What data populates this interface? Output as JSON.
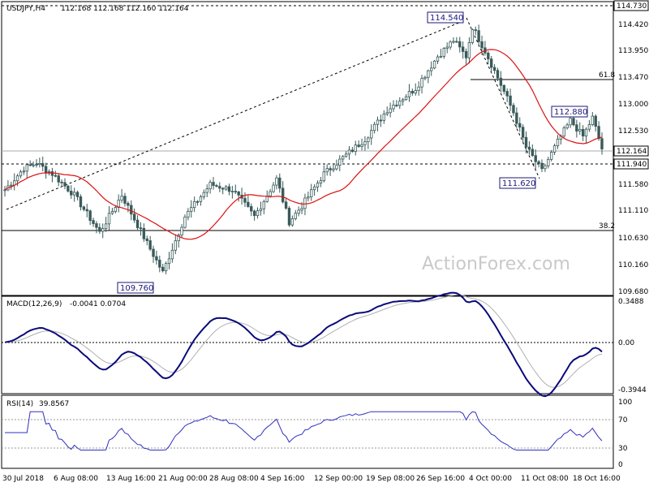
{
  "header": {
    "symbol": "USDJPY,H4",
    "ohlc": "112.168 112.168 112.160 112.164"
  },
  "watermark": "ActionForex.com",
  "colors": {
    "candles": "#3a5a5a",
    "ma": "#dd1111",
    "macd": "#0a0a7a",
    "signal": "#b0b0b0",
    "rsi": "#3030c0",
    "box": "#1a1a7a"
  },
  "price_axis": [
    "114.420",
    "113.950",
    "113.470",
    "113.000",
    "112.530",
    "111.580",
    "111.110",
    "110.630",
    "110.160",
    "109.680"
  ],
  "price_tags": {
    "top": "114.730",
    "current": "112.164",
    "support": "111.940"
  },
  "fib": {
    "upper": "61.8",
    "lower": "38.2"
  },
  "callouts": {
    "high": "114.540",
    "low": "109.760",
    "mid_low": "111.620",
    "mid_high": "112.880"
  },
  "macd": {
    "label": "MACD(12,26,9)",
    "values": "-0.0041 0.0704",
    "axis": [
      "0.3488",
      "0.00",
      "-0.3944"
    ]
  },
  "rsi": {
    "label": "RSI(14)",
    "values": "39.8567",
    "axis": [
      "100",
      "70",
      "30",
      "0"
    ]
  },
  "time_axis": [
    "30 Jul 2018",
    "6 Aug 08:00",
    "13 Aug 16:00",
    "21 Aug 00:00",
    "28 Aug 08:00",
    "4 Sep 16:00",
    "12 Sep 00:00",
    "19 Sep 08:00",
    "26 Sep 16:00",
    "4 Oct 00:00",
    "11 Oct 08:00",
    "18 Oct 16:00"
  ],
  "chart_data": [
    {
      "type": "candlestick",
      "title": "USDJPY,H4",
      "ylim": [
        109.45,
        114.85
      ],
      "anchors": [
        [
          0,
          111.4
        ],
        [
          6,
          111.8
        ],
        [
          10,
          111.9
        ],
        [
          15,
          111.7
        ],
        [
          22,
          111.3
        ],
        [
          30,
          110.6
        ],
        [
          37,
          111.3
        ],
        [
          45,
          110.4
        ],
        [
          50,
          109.85
        ],
        [
          57,
          110.9
        ],
        [
          65,
          111.5
        ],
        [
          72,
          111.4
        ],
        [
          79,
          110.9
        ],
        [
          86,
          111.6
        ],
        [
          90,
          110.8
        ],
        [
          94,
          111.1
        ],
        [
          101,
          111.7
        ],
        [
          107,
          112.0
        ],
        [
          114,
          112.35
        ],
        [
          121,
          112.9
        ],
        [
          130,
          113.3
        ],
        [
          137,
          113.9
        ],
        [
          142,
          114.2
        ],
        [
          146,
          113.9
        ],
        [
          148,
          114.45
        ],
        [
          152,
          114.0
        ],
        [
          156,
          113.5
        ],
        [
          161,
          112.85
        ],
        [
          165,
          112.2
        ],
        [
          170,
          111.75
        ],
        [
          175,
          112.3
        ],
        [
          179,
          112.7
        ],
        [
          183,
          112.4
        ],
        [
          186,
          112.75
        ],
        [
          189,
          112.164
        ]
      ],
      "ma_period": 20
    },
    {
      "type": "line",
      "title": "MACD(12,26,9)",
      "series": [
        {
          "name": "MACD"
        },
        {
          "name": "Signal"
        }
      ],
      "ylim": [
        -0.43,
        0.37
      ]
    },
    {
      "type": "line",
      "title": "RSI(14)",
      "series": [
        {
          "name": "RSI"
        }
      ],
      "ylim": [
        0,
        100
      ]
    }
  ]
}
